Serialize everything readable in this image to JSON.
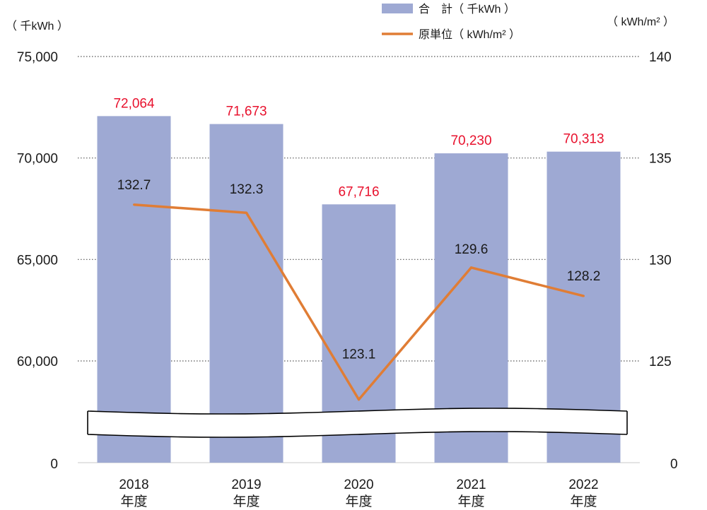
{
  "chart_data": {
    "type": "bar",
    "categories": [
      [
        "2018",
        "年度"
      ],
      [
        "2019",
        "年度"
      ],
      [
        "2020",
        "年度"
      ],
      [
        "2021",
        "年度"
      ],
      [
        "2022",
        "年度"
      ]
    ],
    "series": [
      {
        "name": "合　計（ 千kWh ）",
        "type": "bar",
        "axis": "left",
        "values": [
          72064,
          71673,
          67716,
          70230,
          70313
        ],
        "labels": [
          "72,064",
          "71,673",
          "67,716",
          "70,230",
          "70,313"
        ]
      },
      {
        "name": "原単位（ kWh/m² ）",
        "type": "line",
        "axis": "right",
        "values": [
          132.7,
          132.3,
          123.1,
          129.6,
          128.2
        ],
        "labels": [
          "132.7",
          "132.3",
          "123.1",
          "129.6",
          "128.2"
        ]
      }
    ],
    "left_axis": {
      "unit": "（ 千kWh ）",
      "ticks": [
        60000,
        65000,
        70000,
        75000
      ],
      "tick_labels": [
        "60,000",
        "65,000",
        "70,000",
        "75,000"
      ],
      "ylim": [
        60000,
        75000
      ],
      "break_label": "0",
      "axis_break": true
    },
    "right_axis": {
      "unit": "（ kWh/m² ）",
      "ticks": [
        125,
        130,
        135,
        140
      ],
      "tick_labels": [
        "125",
        "130",
        "135",
        "140"
      ],
      "ylim": [
        125,
        140
      ],
      "break_label": "0"
    },
    "grid": "dotted horizontal",
    "legend_position": "top-right",
    "colors": {
      "bar": "#9ea9d3",
      "line": "#e07d35",
      "bar_label": "#e8112d",
      "line_label": "#1a1a1a",
      "axis_text": "#1a1a1a",
      "grid": "#555555"
    }
  }
}
